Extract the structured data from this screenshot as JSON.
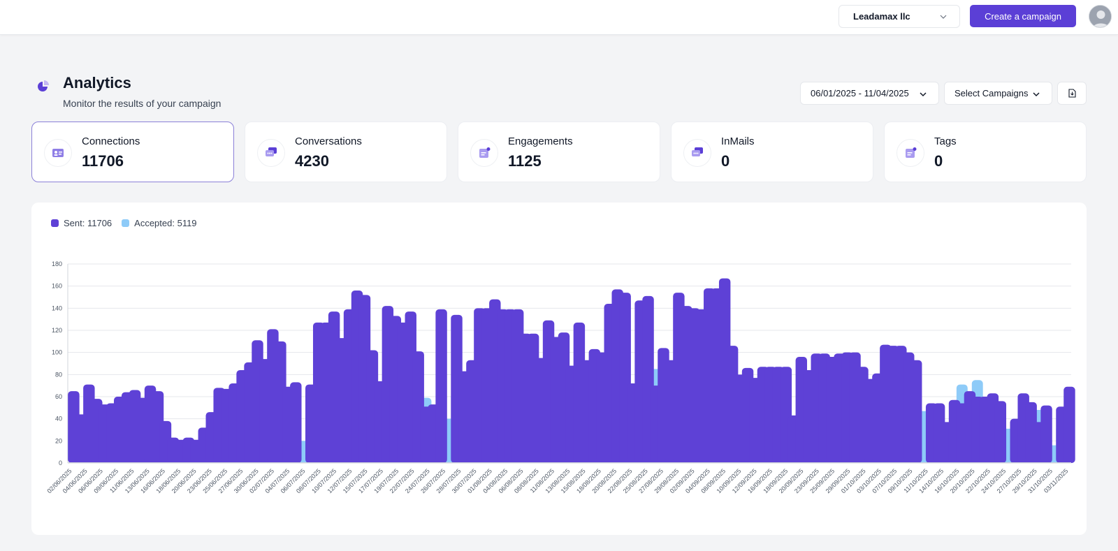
{
  "header": {
    "org_name": "Leadamax llc",
    "create_label": "Create a campaign"
  },
  "page": {
    "title": "Analytics",
    "subtitle": "Monitor the results of your campaign"
  },
  "filters": {
    "date_range": "06/01/2025 - 11/04/2025",
    "campaigns_label": "Select Campaigns"
  },
  "stats": [
    {
      "label": "Connections",
      "value": "11706",
      "icon": "contact-card-icon",
      "active": true
    },
    {
      "label": "Conversations",
      "value": "4230",
      "icon": "chat-bubbles-icon",
      "active": false
    },
    {
      "label": "Engagements",
      "value": "1125",
      "icon": "message-notification-icon",
      "active": false
    },
    {
      "label": "InMails",
      "value": "0",
      "icon": "mail-chat-icon",
      "active": false
    },
    {
      "label": "Tags",
      "value": "0",
      "icon": "tag-note-icon",
      "active": false
    }
  ],
  "colors": {
    "accent": "#5b3fd6",
    "sent": "#5e41d6",
    "accepted": "#8ecbf8"
  },
  "chart_data": {
    "type": "bar",
    "title": "",
    "xlabel": "",
    "ylabel": "",
    "ylim": [
      0,
      180
    ],
    "yticks": [
      0,
      20,
      40,
      60,
      80,
      100,
      120,
      140,
      160,
      180
    ],
    "grid": true,
    "legend_position": "top-left",
    "legend": [
      {
        "label": "Sent: 11706",
        "color": "#5e41d6"
      },
      {
        "label": "Accepted: 5119",
        "color": "#8ecbf8"
      }
    ],
    "tick_labels": [
      "02/06/2025",
      "04/06/2025",
      "06/06/2025",
      "09/06/2025",
      "11/06/2025",
      "13/06/2025",
      "16/06/2025",
      "18/06/2025",
      "20/06/2025",
      "23/06/2025",
      "25/06/2025",
      "27/06/2025",
      "30/06/2025",
      "02/07/2025",
      "04/07/2025",
      "06/07/2025",
      "08/07/2025",
      "10/07/2025",
      "12/07/2025",
      "15/07/2025",
      "17/07/2025",
      "19/07/2025",
      "22/07/2025",
      "24/07/2025",
      "26/07/2025",
      "28/07/2025",
      "30/07/2025",
      "01/08/2025",
      "04/08/2025",
      "06/08/2025",
      "08/08/2025",
      "11/08/2025",
      "13/08/2025",
      "15/08/2025",
      "18/08/2025",
      "20/08/2025",
      "22/08/2025",
      "25/08/2025",
      "27/08/2025",
      "29/08/2025",
      "02/09/2025",
      "04/09/2025",
      "08/09/2025",
      "10/09/2025",
      "12/09/2025",
      "16/09/2025",
      "18/09/2025",
      "20/09/2025",
      "23/09/2025",
      "25/09/2025",
      "29/09/2025",
      "01/10/2025",
      "03/10/2025",
      "07/10/2025",
      "09/10/2025",
      "11/10/2025",
      "14/10/2025",
      "16/10/2025",
      "20/10/2025",
      "22/10/2025",
      "24/10/2025",
      "27/10/2025",
      "29/10/2025",
      "31/10/2025",
      "03/11/2025"
    ],
    "series": [
      {
        "name": "Sent",
        "values": [
          65,
          44,
          71,
          58,
          53,
          54,
          60,
          64,
          66,
          59,
          70,
          65,
          38,
          23,
          21,
          23,
          21,
          32,
          46,
          68,
          67,
          72,
          84,
          91,
          111,
          94,
          121,
          110,
          69,
          73,
          0,
          71,
          127,
          127,
          137,
          113,
          139,
          156,
          152,
          102,
          74,
          142,
          133,
          127,
          137,
          101,
          51,
          53,
          139,
          0,
          134,
          83,
          93,
          140,
          140,
          148,
          139,
          139,
          139,
          117,
          117,
          95,
          129,
          114,
          118,
          88,
          127,
          93,
          103,
          100,
          144,
          157,
          154,
          72,
          147,
          151,
          70,
          104,
          93,
          154,
          142,
          140,
          139,
          158,
          158,
          167,
          106,
          80,
          86,
          77,
          87,
          87,
          87,
          87,
          43,
          96,
          84,
          99,
          99,
          96,
          99,
          100,
          100,
          87,
          76,
          81,
          107,
          106,
          106,
          100,
          93,
          0,
          54,
          54,
          37,
          57,
          54,
          65,
          60,
          60,
          63,
          56,
          0,
          40,
          63,
          55,
          37,
          52,
          0,
          51,
          69
        ]
      },
      {
        "name": "Accepted",
        "values": [
          30,
          21,
          34,
          27,
          25,
          26,
          28,
          30,
          31,
          28,
          33,
          31,
          18,
          11,
          10,
          11,
          10,
          15,
          22,
          32,
          32,
          34,
          40,
          43,
          52,
          45,
          57,
          52,
          33,
          35,
          20,
          33,
          60,
          60,
          64,
          53,
          65,
          72,
          72,
          52,
          35,
          67,
          63,
          60,
          64,
          48,
          59,
          25,
          65,
          40,
          63,
          39,
          44,
          66,
          66,
          70,
          65,
          65,
          65,
          55,
          55,
          45,
          60,
          54,
          55,
          41,
          60,
          44,
          48,
          47,
          68,
          74,
          72,
          34,
          69,
          71,
          85,
          49,
          44,
          72,
          67,
          66,
          65,
          74,
          74,
          79,
          50,
          38,
          40,
          36,
          41,
          41,
          41,
          41,
          20,
          45,
          40,
          47,
          47,
          45,
          47,
          47,
          47,
          41,
          36,
          38,
          50,
          50,
          50,
          47,
          44,
          47,
          25,
          25,
          17,
          27,
          71,
          30,
          75,
          28,
          30,
          26,
          31,
          19,
          30,
          26,
          48,
          24,
          16,
          34,
          34
        ]
      }
    ]
  }
}
